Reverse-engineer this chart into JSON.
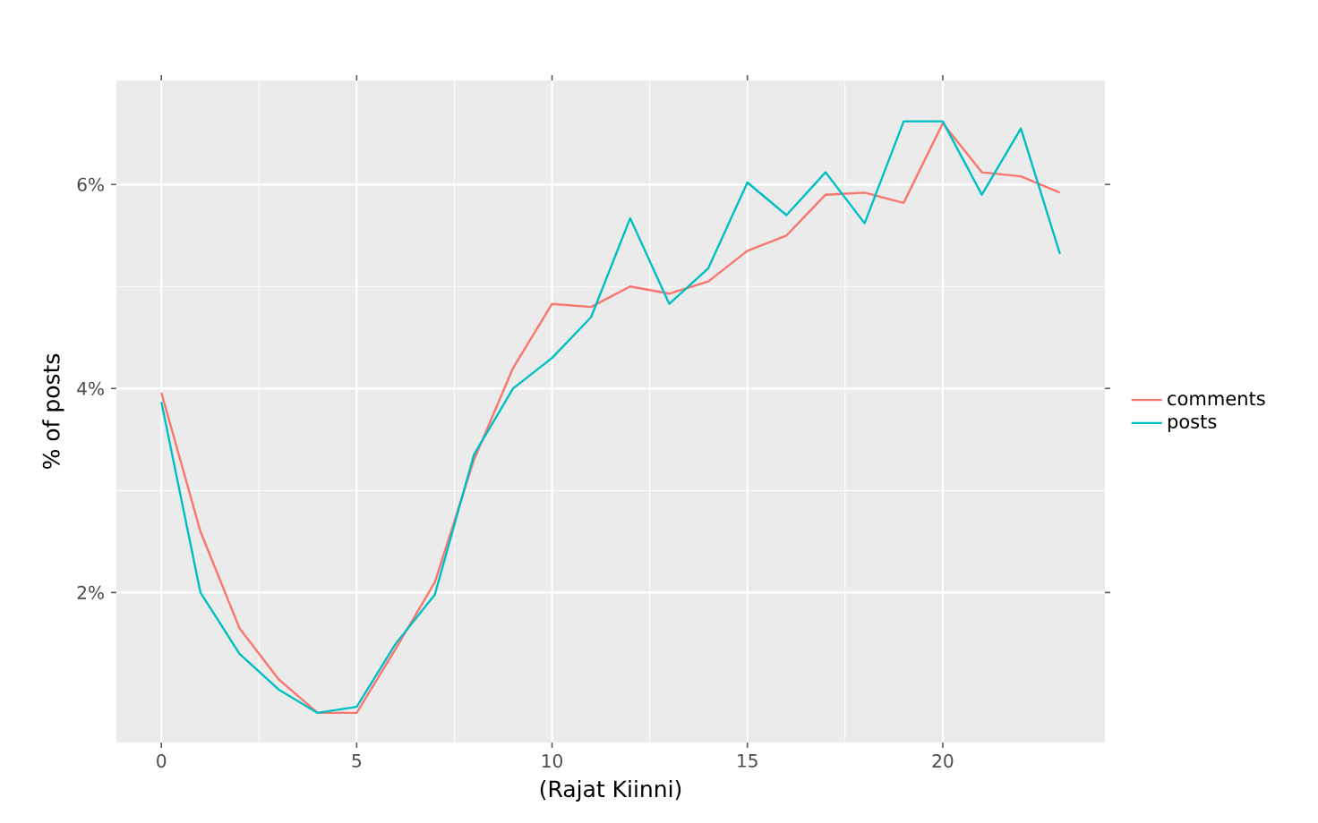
{
  "chart_data": {
    "type": "line",
    "xlabel": "(Rajat Kiinni)",
    "ylabel": "% of posts",
    "x": [
      0,
      1,
      2,
      3,
      4,
      5,
      6,
      7,
      8,
      9,
      10,
      11,
      12,
      13,
      14,
      15,
      16,
      17,
      18,
      19,
      20,
      21,
      22,
      23
    ],
    "series": [
      {
        "name": "comments",
        "color": "#f8766d",
        "values": [
          3.96,
          2.6,
          1.65,
          1.15,
          0.82,
          0.82,
          1.45,
          2.1,
          3.3,
          4.2,
          4.83,
          4.8,
          5.0,
          4.93,
          5.05,
          5.35,
          5.5,
          5.9,
          5.92,
          5.82,
          6.6,
          6.12,
          6.08,
          5.92
        ]
      },
      {
        "name": "posts",
        "color": "#00bfc4",
        "values": [
          3.87,
          2.0,
          1.4,
          1.05,
          0.82,
          0.88,
          1.5,
          1.98,
          3.35,
          4.0,
          4.3,
          4.7,
          5.67,
          4.83,
          5.18,
          6.02,
          5.7,
          6.12,
          5.62,
          6.62,
          6.62,
          5.9,
          6.55,
          5.32
        ]
      }
    ],
    "xlim": [
      -1.15,
      24.15
    ],
    "ylim": [
      0.53,
      7.02
    ],
    "xticks": [
      0,
      5,
      10,
      15,
      20
    ],
    "yticks": [
      {
        "value": 2,
        "label": "2%"
      },
      {
        "value": 4,
        "label": "4%"
      },
      {
        "value": 6,
        "label": "6%"
      }
    ],
    "grid": true,
    "legend": "right",
    "line_style": "solid",
    "marker": "none"
  }
}
